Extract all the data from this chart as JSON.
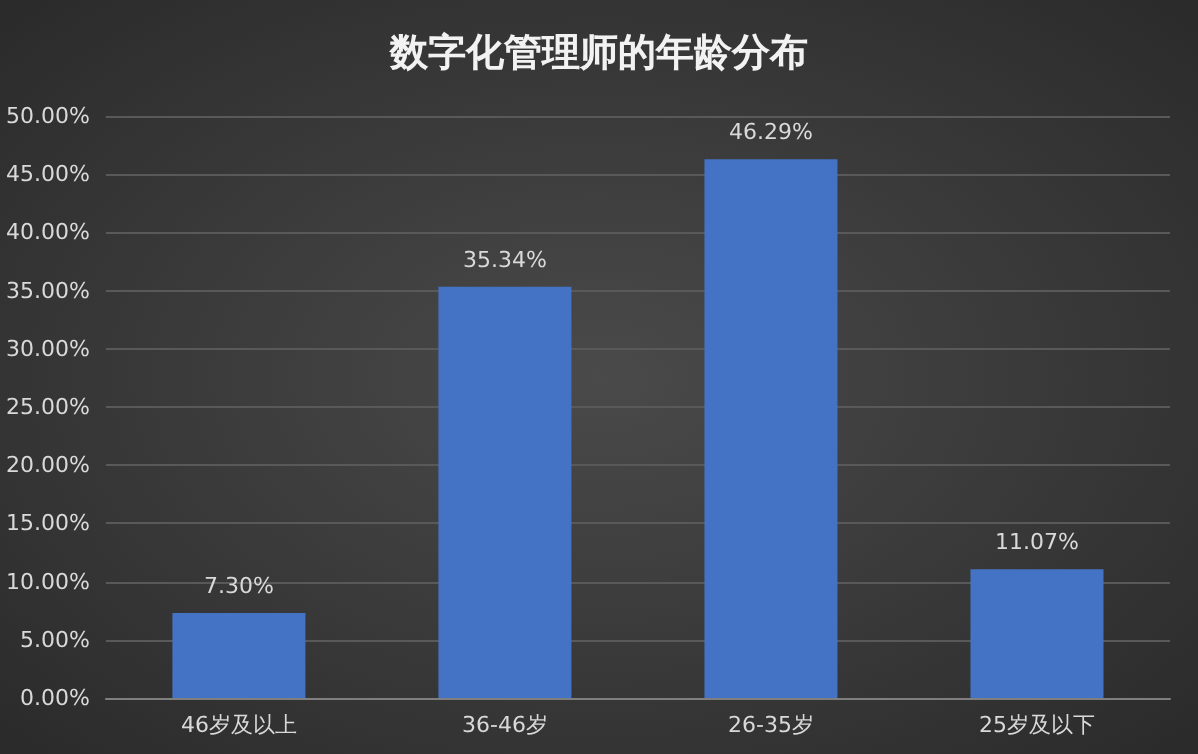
{
  "chart_data": {
    "type": "bar",
    "title": "数字化管理师的年龄分布",
    "categories": [
      "46岁及以上",
      "36-46岁",
      "26-35岁",
      "25岁及以下"
    ],
    "values": [
      7.3,
      35.34,
      46.29,
      11.07
    ],
    "value_labels": [
      "7.30%",
      "35.34%",
      "46.29%",
      "11.07%"
    ],
    "color": "#4472c4",
    "ylim": [
      0,
      50
    ],
    "yticks": [
      {
        "value": 0,
        "label": "0.00%"
      },
      {
        "value": 5,
        "label": "5.00%"
      },
      {
        "value": 10,
        "label": "10.00%"
      },
      {
        "value": 15,
        "label": "15.00%"
      },
      {
        "value": 20,
        "label": "20.00%"
      },
      {
        "value": 25,
        "label": "25.00%"
      },
      {
        "value": 30,
        "label": "30.00%"
      },
      {
        "value": 35,
        "label": "35.00%"
      },
      {
        "value": 40,
        "label": "40.00%"
      },
      {
        "value": 45,
        "label": "45.00%"
      },
      {
        "value": 50,
        "label": "50.00%"
      }
    ],
    "grid": "y"
  }
}
